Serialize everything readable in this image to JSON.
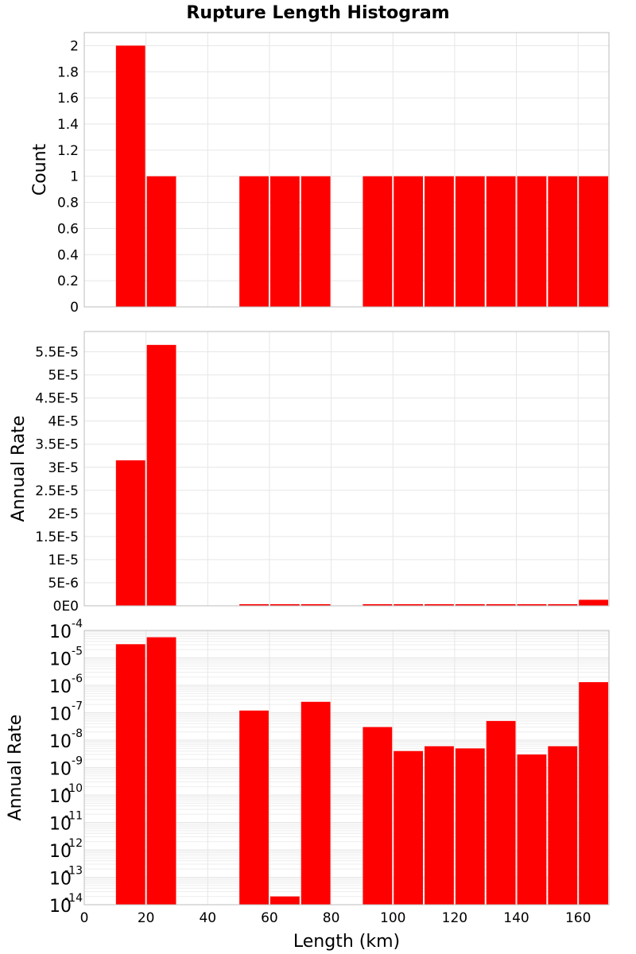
{
  "chart_data": {
    "type": "bar",
    "title": "Rupture Length Histogram",
    "xlabel": "Length (km)",
    "xlim": [
      0,
      170
    ],
    "x_ticks": [
      "0",
      "20",
      "40",
      "60",
      "80",
      "100",
      "120",
      "140",
      "160"
    ],
    "bin_width": 10,
    "bin_centers": [
      15,
      25,
      35,
      45,
      55,
      65,
      75,
      85,
      95,
      105,
      115,
      125,
      135,
      145,
      155,
      165
    ],
    "bar_color": "#ff0000",
    "panels": [
      {
        "name": "count",
        "ylabel": "Count",
        "scale": "linear",
        "ylim": [
          0,
          2.1
        ],
        "y_ticks": [
          "0",
          "0.2",
          "0.4",
          "0.6",
          "0.8",
          "1",
          "1.2",
          "1.4",
          "1.6",
          "1.8",
          "2"
        ],
        "values": [
          2,
          1,
          0,
          0,
          1,
          1,
          1,
          0,
          1,
          1,
          1,
          1,
          1,
          1,
          1,
          1
        ]
      },
      {
        "name": "rate-linear",
        "ylabel": "Annual Rate",
        "scale": "linear",
        "ylim": [
          0,
          5.94e-05
        ],
        "y_ticks": [
          "0E0",
          "5E-6",
          "1E-5",
          "1.5E-5",
          "2E-5",
          "2.5E-5",
          "3E-5",
          "3.5E-5",
          "4E-5",
          "4.5E-5",
          "5E-5",
          "5.5E-5"
        ],
        "values": [
          3.15e-05,
          5.65e-05,
          0,
          0,
          1.2e-07,
          2e-14,
          2.5e-07,
          0,
          3e-08,
          4e-09,
          6e-09,
          5e-09,
          5e-08,
          3e-09,
          6e-09,
          1.3e-06
        ]
      },
      {
        "name": "rate-log",
        "ylabel": "Annual Rate",
        "scale": "log",
        "ylim_exponents": [
          -14,
          -4
        ],
        "y_tick_base": "10",
        "y_tick_exponents": [
          "-14",
          "-13",
          "-12",
          "-11",
          "-10",
          "-9",
          "-8",
          "-7",
          "-6",
          "-5",
          "-4"
        ],
        "values": [
          3.15e-05,
          5.65e-05,
          0,
          0,
          1.2e-07,
          2e-14,
          2.5e-07,
          0,
          3e-08,
          4e-09,
          6e-09,
          5e-09,
          5e-08,
          3e-09,
          6e-09,
          1.3e-06
        ]
      }
    ]
  }
}
